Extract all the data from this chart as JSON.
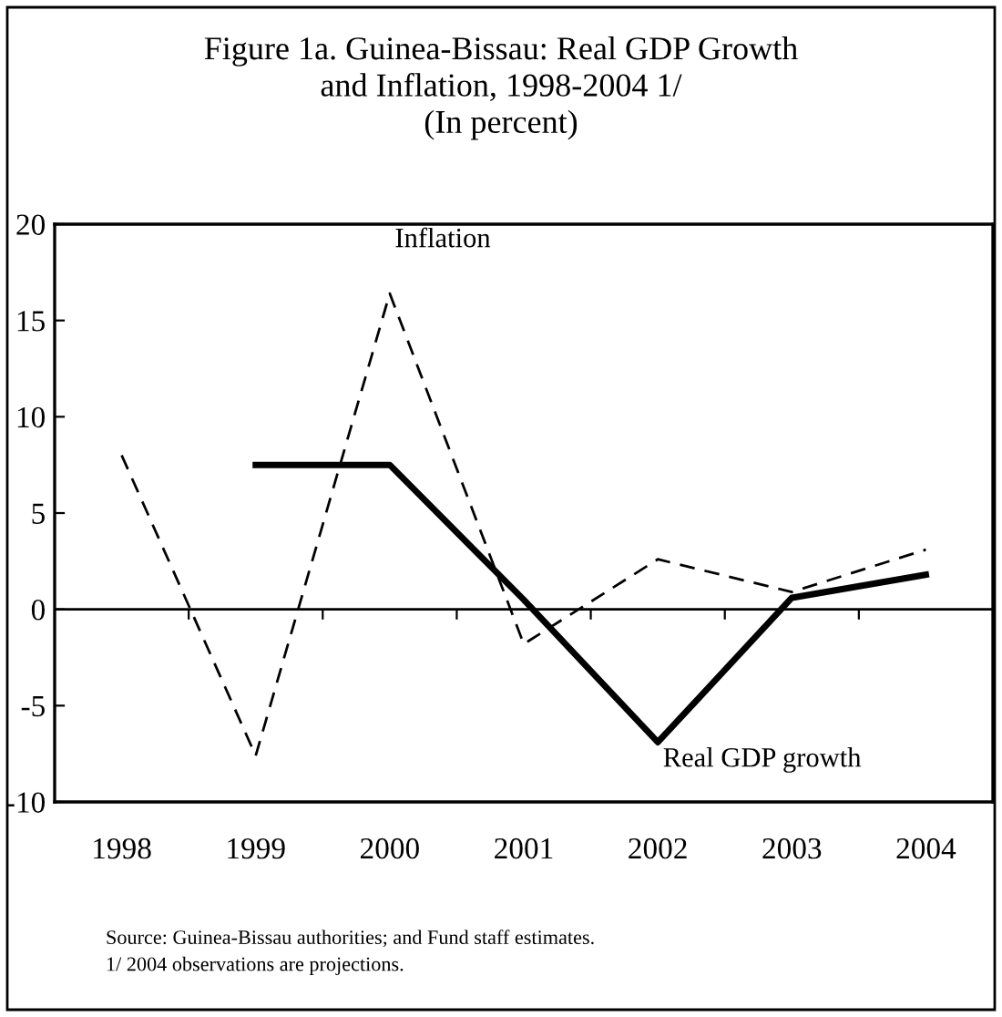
{
  "chart_data": {
    "type": "line",
    "title": "Figure 1a. Guinea-Bissau: Real GDP Growth\nand Inflation, 1998-2004 1/\n(In percent)",
    "categories": [
      "1998",
      "1999",
      "2000",
      "2001",
      "2002",
      "2003",
      "2004"
    ],
    "series": [
      {
        "name": "Inflation",
        "color": "#000000",
        "line_style": "dashed",
        "values": [
          8.0,
          -7.6,
          16.4,
          -1.8,
          2.6,
          0.9,
          3.1
        ]
      },
      {
        "name": "Real GDP growth",
        "color": "#000000",
        "line_style": "solid",
        "values": [
          null,
          7.5,
          7.5,
          0.5,
          -6.9,
          0.6,
          1.8
        ]
      }
    ],
    "ylim": [
      -10,
      20
    ],
    "yticks": [
      -10,
      -5,
      0,
      5,
      10,
      15,
      20
    ],
    "ref_lines": [
      {
        "axis": "y",
        "value": 0,
        "color": "#000000"
      }
    ],
    "grid": false,
    "legend": false,
    "marker": "none",
    "annotations": [
      "Source: Guinea-Bissau authorities; and Fund staff estimates.\n1/ 2004 observations are projections."
    ]
  }
}
